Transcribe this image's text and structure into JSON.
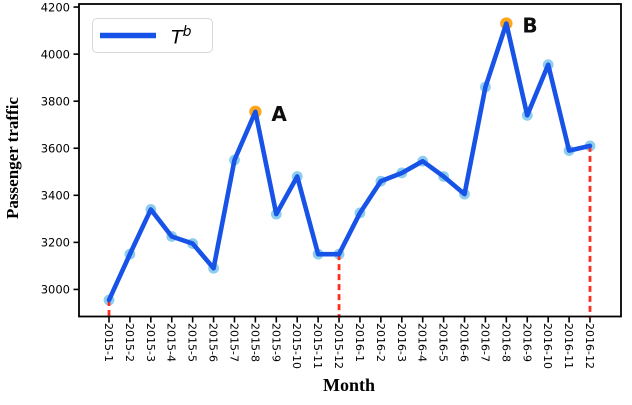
{
  "figure": {
    "background": "#ffffff",
    "spine_color": "#000000",
    "text_color": "#000000"
  },
  "chart_data": {
    "type": "line",
    "title": "",
    "xlabel": "Month",
    "ylabel": "Passenger traffic",
    "grid": false,
    "legend_position": "upper-left",
    "categories": [
      "2015-1",
      "2015-2",
      "2015-3",
      "2015-4",
      "2015-5",
      "2015-6",
      "2015-7",
      "2015-8",
      "2015-9",
      "2015-10",
      "2015-11",
      "2015-12",
      "2016-1",
      "2016-2",
      "2016-3",
      "2016-4",
      "2016-5",
      "2016-6",
      "2016-7",
      "2016-8",
      "2016-9",
      "2016-10",
      "2016-11",
      "2016-12"
    ],
    "series": [
      {
        "name": "T^b",
        "legend_base": "T",
        "legend_sup": "b",
        "color": "#1853e8",
        "marker_color": "#8fcdee",
        "values": [
          2955,
          3150,
          3340,
          3225,
          3195,
          3090,
          3550,
          3755,
          3320,
          3480,
          3150,
          3150,
          3325,
          3460,
          3495,
          3545,
          3480,
          3405,
          3860,
          4130,
          3740,
          3955,
          3590,
          3610
        ]
      }
    ],
    "ylim": [
      2885,
      4213
    ],
    "yticks": [
      3000,
      3200,
      3400,
      3600,
      3800,
      4000,
      4200
    ],
    "annotations": [
      {
        "label": "A",
        "category": "2015-8",
        "value": 3755,
        "marker_color": "#ffa51c"
      },
      {
        "label": "B",
        "category": "2016-8",
        "value": 4130,
        "marker_color": "#ffa51c"
      }
    ],
    "vlines": {
      "categories": [
        "2015-1",
        "2015-12",
        "2016-12"
      ],
      "color": "#ff2d1e",
      "style": "dashed"
    }
  }
}
